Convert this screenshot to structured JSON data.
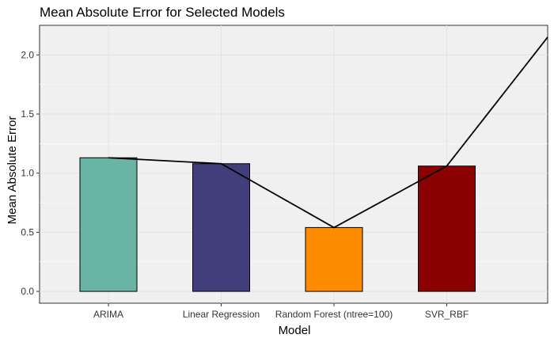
{
  "chart_data": {
    "type": "bar",
    "title": "Mean Absolute Error for Selected Models",
    "xlabel": "Model",
    "ylabel": "Mean Absolute Error",
    "categories": [
      "ARIMA",
      "Linear Regression",
      "Random Forest (ntree=100)",
      "SVR_RBF"
    ],
    "values": [
      1.13,
      1.08,
      0.54,
      1.06
    ],
    "colors": [
      "#6ab4a5",
      "#423e7c",
      "#ff8c00",
      "#8b0000"
    ],
    "ylim": [
      -0.1,
      2.25
    ],
    "yticks": [
      0.0,
      0.5,
      1.0,
      1.5,
      2.0
    ],
    "ytick_labels": [
      "0.0",
      "0.5",
      "1.0",
      "1.5",
      "2.0"
    ],
    "overlay_line": {
      "points": [
        {
          "x": "ARIMA",
          "y": 1.13
        },
        {
          "x": "Linear Regression",
          "y": 1.08
        },
        {
          "x": "Random Forest (ntree=100)",
          "y": 0.54
        },
        {
          "x": "SVR_RBF",
          "y": 1.06
        }
      ],
      "extends_to_right_edge_y": 2.15,
      "color": "#000000"
    },
    "grid": true,
    "legend": "none",
    "panel_background": "#f0f0f0"
  }
}
